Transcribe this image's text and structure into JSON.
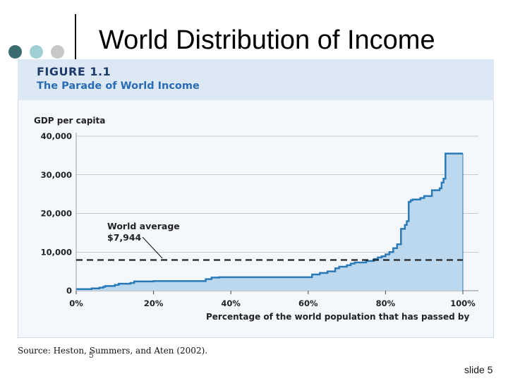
{
  "slide": {
    "title": "World Distribution of Income",
    "page_number": "5",
    "slide_label": "slide 5",
    "dot_colors": [
      "#3a6b6f",
      "#9fcfd2",
      "#c8c8c8"
    ]
  },
  "figure": {
    "label": "FIGURE 1.1",
    "title": "The Parade of World Income",
    "source": "Source: Heston, Summers, and Aten (2002)."
  },
  "colors": {
    "line": "#2a7ab8",
    "fill": "#bcd8ef",
    "average": "#222222",
    "grid": "#999999"
  },
  "chart_data": {
    "type": "area",
    "title": "The Parade of World Income",
    "xlabel": "Percentage of the world population that has passed by",
    "ylabel": "GDP per capita",
    "xlim": [
      0,
      100
    ],
    "ylim": [
      0,
      40000
    ],
    "x_ticks": [
      0,
      20,
      40,
      60,
      80,
      100
    ],
    "x_tick_labels": [
      "0%",
      "20%",
      "40%",
      "60%",
      "80%",
      "100%"
    ],
    "y_ticks": [
      0,
      10000,
      20000,
      30000,
      40000
    ],
    "y_tick_labels": [
      "0",
      "10,000",
      "20,000",
      "30,000",
      "40,000"
    ],
    "series": [
      {
        "name": "GDP per capita",
        "x": [
          0,
          4,
          6,
          7,
          7.5,
          10,
          11,
          14,
          15,
          20,
          33,
          33.5,
          35,
          37,
          60,
          61,
          63,
          65,
          67,
          68,
          70,
          71,
          72,
          75,
          77,
          78,
          79,
          80,
          81,
          82,
          83,
          84,
          85,
          85.5,
          86,
          86.5,
          87,
          89,
          90,
          92,
          94,
          94.5,
          95,
          95.5,
          100
        ],
        "values": [
          400,
          600,
          800,
          1000,
          1200,
          1500,
          1800,
          2000,
          2400,
          2500,
          2500,
          3000,
          3400,
          3500,
          3500,
          4200,
          4600,
          5000,
          5800,
          6200,
          6600,
          7000,
          7300,
          7700,
          8200,
          8600,
          8900,
          9400,
          10000,
          11000,
          12000,
          16000,
          17000,
          18000,
          23000,
          23400,
          23600,
          24000,
          24500,
          26000,
          26500,
          28000,
          29000,
          35500,
          35500
        ]
      }
    ],
    "reference_line": {
      "label": "World average",
      "value_label": "$7,944",
      "value": 7944
    }
  }
}
